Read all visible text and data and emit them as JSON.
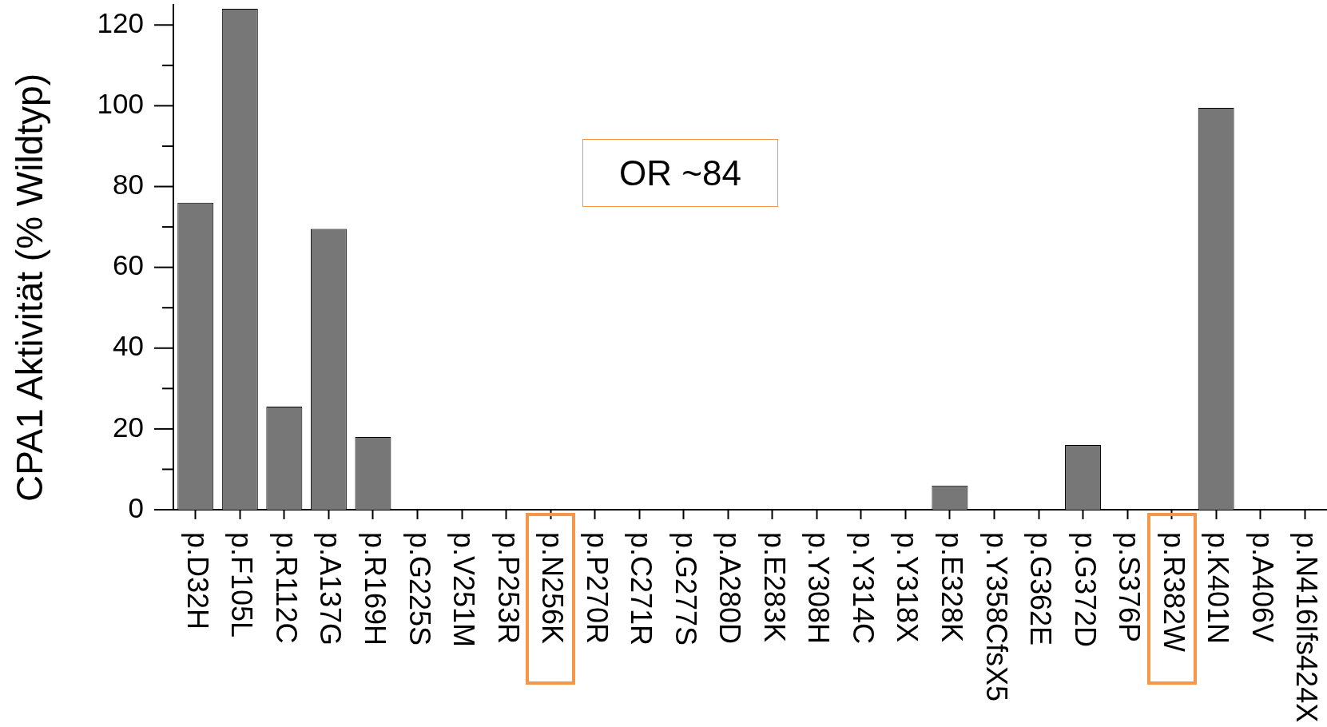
{
  "chart_data": {
    "type": "bar",
    "ylabel": "CPA1 Aktivität (% Wildtyp)",
    "categories": [
      "p.D32H",
      "p.F105L",
      "p.R112C",
      "p.A137G",
      "p.R169H",
      "p.G225S",
      "p.V251M",
      "p.P253R",
      "p.N256K",
      "p.P270R",
      "p.C271R",
      "p.G277S",
      "p.A280D",
      "p.E283K",
      "p.Y308H",
      "p.Y314C",
      "p.Y318X",
      "p.E328K",
      "p.Y358CfsX5",
      "p.G362E",
      "p.G372D",
      "p.S376P",
      "p.R382W",
      "p.K401N",
      "p.A406V",
      "p.N416Ifs424X"
    ],
    "values": [
      76,
      124,
      25.5,
      69.5,
      18,
      0,
      0,
      0,
      0,
      0,
      0,
      0,
      0,
      0,
      0,
      0,
      0,
      6,
      0,
      0,
      16,
      0,
      0,
      99.5,
      0,
      0
    ],
    "color": "#777777",
    "ylim": [
      0,
      125
    ],
    "yticks": [
      0,
      {
        "value": 10,
        "label": null
      },
      20,
      {
        "value": 30,
        "label": null
      },
      40,
      {
        "value": 50,
        "label": null
      },
      60,
      {
        "value": 70,
        "label": null
      },
      80,
      {
        "value": 90,
        "label": null
      },
      100,
      {
        "value": 110,
        "label": null
      },
      120
    ],
    "annotations": [
      "OR ~84"
    ]
  }
}
